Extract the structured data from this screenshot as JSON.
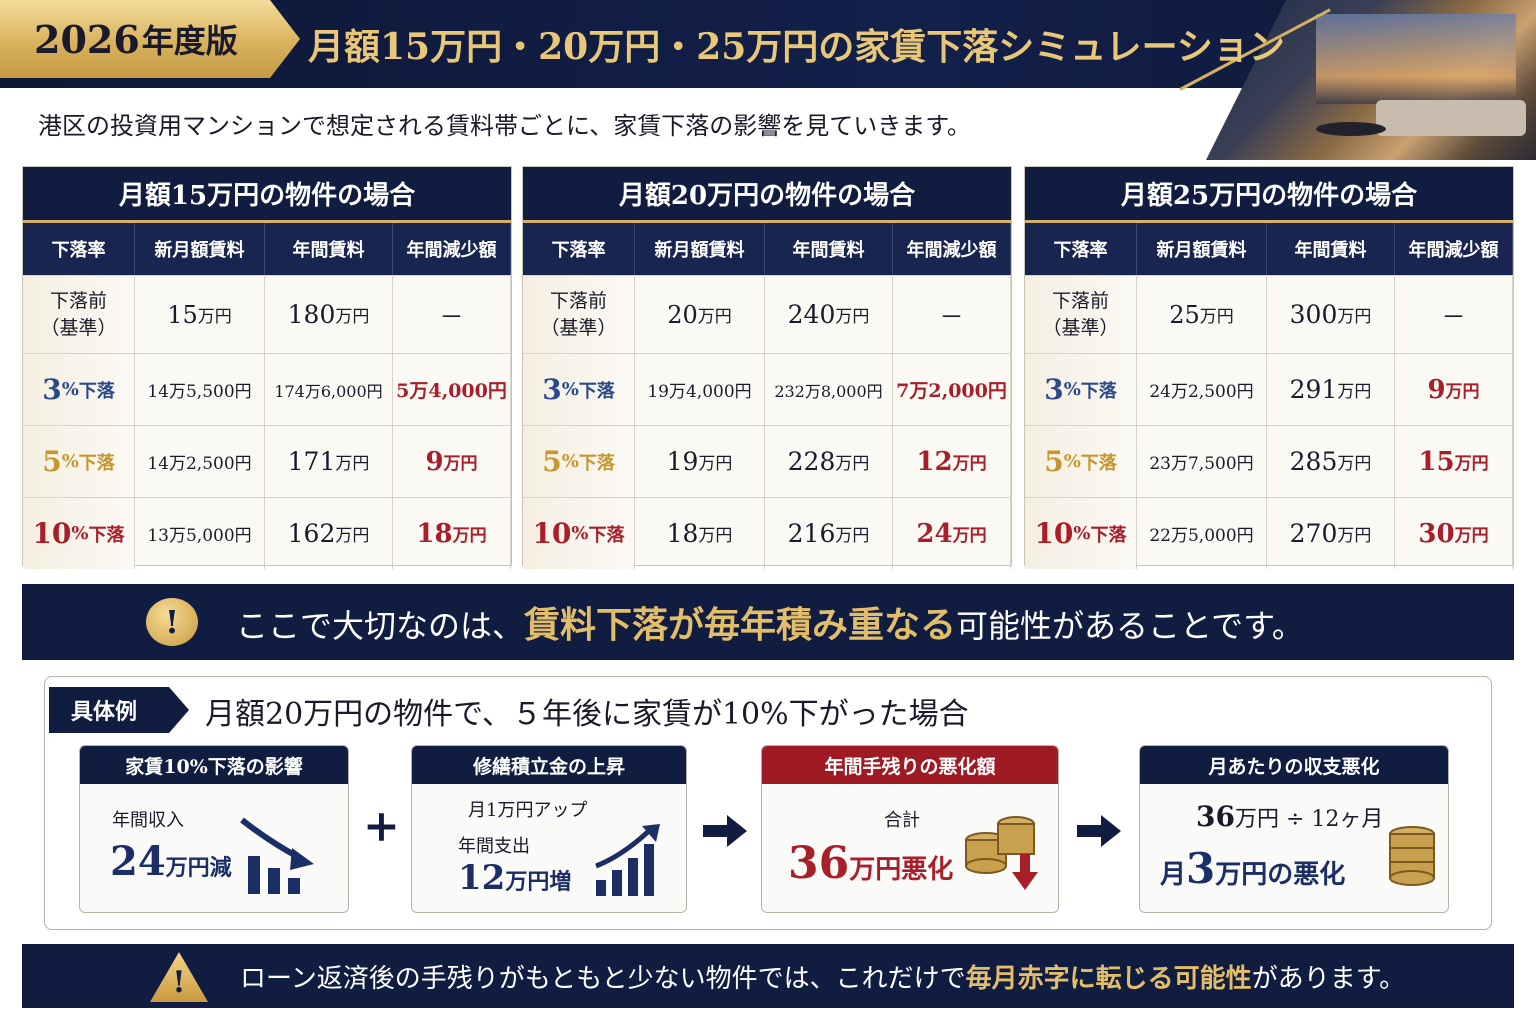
{
  "header": {
    "year_num": "2026",
    "year_suffix": "年度版",
    "title": "月額15万円・20万円・25万円の家賃下落シミュレーション"
  },
  "subtitle": "港区の投資用マンションで想定される賃料帯ごとに、家賃下落の影響を見ていきます。",
  "columns": [
    "下落率",
    "新月額賃料",
    "年間賃料",
    "年間減少額"
  ],
  "base_label_line1": "下落前",
  "base_label_line2": "（基準）",
  "rate_suffix_pct": "%",
  "rate_suffix_drop": "下落",
  "tables": [
    {
      "title": "月額15万円の物件の場合",
      "base": {
        "monthly_num": "15",
        "monthly_unit": "万円",
        "annual_num": "180",
        "annual_unit": "万円",
        "decrease": "－"
      },
      "rows": [
        {
          "rate": "3",
          "monthly": "14万5,500円",
          "annual": "174万6,000円",
          "decrease_num": "5万4,000円",
          "decrease_unit": ""
        },
        {
          "rate": "5",
          "monthly": "14万2,500円",
          "annual_num": "171",
          "annual_unit": "万円",
          "decrease_num": "9",
          "decrease_unit": "万円"
        },
        {
          "rate": "10",
          "monthly": "13万5,000円",
          "annual_num": "162",
          "annual_unit": "万円",
          "decrease_num": "18",
          "decrease_unit": "万円"
        }
      ]
    },
    {
      "title": "月額20万円の物件の場合",
      "base": {
        "monthly_num": "20",
        "monthly_unit": "万円",
        "annual_num": "240",
        "annual_unit": "万円",
        "decrease": "－"
      },
      "rows": [
        {
          "rate": "3",
          "monthly": "19万4,000円",
          "annual": "232万8,000円",
          "decrease_num": "7万2,000円",
          "decrease_unit": ""
        },
        {
          "rate": "5",
          "monthly_num": "19",
          "monthly_unit": "万円",
          "annual_num": "228",
          "annual_unit": "万円",
          "decrease_num": "12",
          "decrease_unit": "万円"
        },
        {
          "rate": "10",
          "monthly_num": "18",
          "monthly_unit": "万円",
          "annual_num": "216",
          "annual_unit": "万円",
          "decrease_num": "24",
          "decrease_unit": "万円"
        }
      ]
    },
    {
      "title": "月額25万円の物件の場合",
      "base": {
        "monthly_num": "25",
        "monthly_unit": "万円",
        "annual_num": "300",
        "annual_unit": "万円",
        "decrease": "－"
      },
      "rows": [
        {
          "rate": "3",
          "monthly": "24万2,500円",
          "annual_num": "291",
          "annual_unit": "万円",
          "decrease_num": "9",
          "decrease_unit": "万円"
        },
        {
          "rate": "5",
          "monthly": "23万7,500円",
          "annual_num": "285",
          "annual_unit": "万円",
          "decrease_num": "15",
          "decrease_unit": "万円"
        },
        {
          "rate": "10",
          "monthly": "22万5,000円",
          "annual_num": "270",
          "annual_unit": "万円",
          "decrease_num": "30",
          "decrease_unit": "万円"
        }
      ]
    }
  ],
  "notice": {
    "icon": "!",
    "pre": "ここで大切なのは、",
    "emphasis": "賃料下落が毎年積み重なる",
    "post": "可能性があることです。"
  },
  "example": {
    "tag": "具体例",
    "title": "月額20万円の物件で、５年後に家賃が10%下がった場合",
    "card1": {
      "head": "家賃10%下落の影響",
      "label": "年間収入",
      "num": "24",
      "unit": "万円減"
    },
    "plus": "+",
    "card2": {
      "head": "修繕積立金の上昇",
      "line1": "月1万円アップ",
      "label": "年間支出",
      "num": "12",
      "unit": "万円増"
    },
    "card3": {
      "head": "年間手残りの悪化額",
      "label": "合計",
      "num": "36",
      "unit": "万円悪化"
    },
    "card4": {
      "head": "月あたりの収支悪化",
      "calc_num": "36",
      "calc_rest": "万円 ÷ 12ヶ月",
      "pre": "月",
      "num": "3",
      "unit": "万円の悪化"
    }
  },
  "bottom": {
    "icon": "!",
    "pre": "ローン返済後の手残りがもともと少ない物件では、これだけで",
    "emphasis": "毎月赤字に転じる可能性",
    "post": "があります。"
  }
}
